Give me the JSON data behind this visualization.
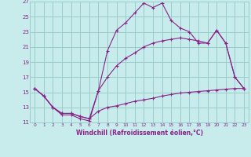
{
  "xlabel": "Windchill (Refroidissement éolien,°C)",
  "bg_color": "#c8ecec",
  "line_color": "#882288",
  "grid_color": "#99cccc",
  "xlim": [
    -0.5,
    23.5
  ],
  "ylim": [
    11,
    27
  ],
  "xticks": [
    0,
    1,
    2,
    3,
    4,
    5,
    6,
    7,
    8,
    9,
    10,
    11,
    12,
    13,
    14,
    15,
    16,
    17,
    18,
    19,
    20,
    21,
    22,
    23
  ],
  "yticks": [
    11,
    13,
    15,
    17,
    19,
    21,
    23,
    25,
    27
  ],
  "line1_x": [
    0,
    1,
    2,
    3,
    4,
    5,
    6,
    7,
    8,
    9,
    10,
    11,
    12,
    13,
    14,
    15,
    16,
    17,
    18,
    19,
    20,
    21,
    22,
    23
  ],
  "line1_y": [
    15.5,
    14.5,
    13.0,
    12.0,
    12.0,
    11.5,
    11.2,
    15.2,
    20.5,
    23.2,
    24.2,
    25.5,
    26.8,
    26.2,
    26.8,
    24.5,
    23.5,
    23.0,
    21.5,
    21.5,
    23.2,
    21.5,
    17.0,
    15.5
  ],
  "line2_x": [
    0,
    1,
    2,
    3,
    4,
    5,
    6,
    7,
    8,
    9,
    10,
    11,
    12,
    13,
    14,
    15,
    16,
    17,
    18,
    19,
    20,
    21,
    22,
    23
  ],
  "line2_y": [
    15.5,
    14.5,
    13.0,
    12.2,
    12.2,
    11.8,
    11.5,
    15.2,
    17.0,
    18.5,
    19.5,
    20.2,
    21.0,
    21.5,
    21.8,
    22.0,
    22.2,
    22.0,
    21.8,
    21.5,
    23.2,
    21.5,
    17.0,
    15.5
  ],
  "line3_x": [
    0,
    1,
    2,
    3,
    4,
    5,
    6,
    7,
    8,
    9,
    10,
    11,
    12,
    13,
    14,
    15,
    16,
    17,
    18,
    19,
    20,
    21,
    22,
    23
  ],
  "line3_y": [
    15.5,
    14.5,
    13.0,
    12.2,
    12.2,
    11.8,
    11.5,
    12.5,
    13.0,
    13.2,
    13.5,
    13.8,
    14.0,
    14.2,
    14.5,
    14.7,
    14.9,
    15.0,
    15.1,
    15.2,
    15.3,
    15.4,
    15.5,
    15.5
  ],
  "marker": "+"
}
